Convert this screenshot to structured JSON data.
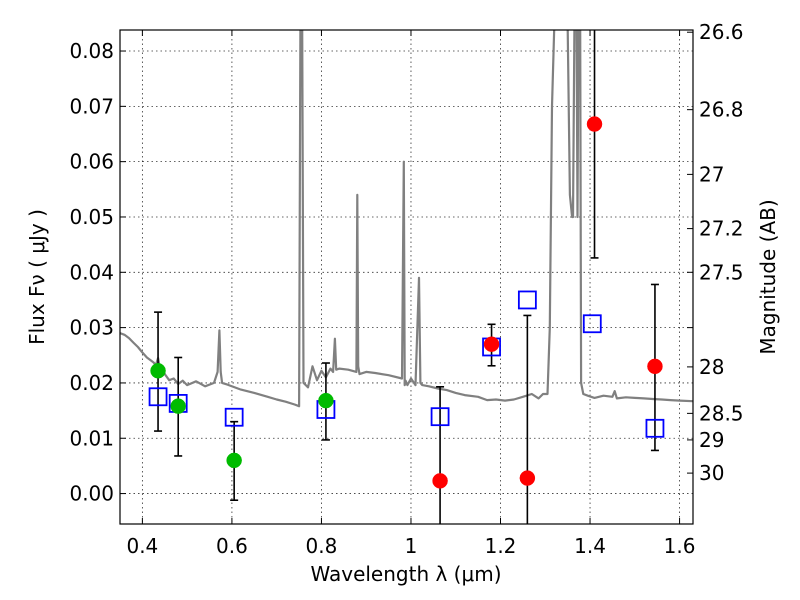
{
  "chart_data": {
    "type": "scatter",
    "xlabel": "Wavelength  λ (μm)",
    "ylabel": "Flux  Fν  ( μJy )",
    "ylabel_right": "Magnitude (AB)",
    "xlim": [
      0.35,
      1.63
    ],
    "ylim": [
      -0.0055,
      0.0838
    ],
    "x_ticks": [
      0.4,
      0.6,
      0.8,
      1.0,
      1.2,
      1.4,
      1.6
    ],
    "x_tick_labels": [
      "0.4",
      "0.6",
      "0.8",
      "1",
      "1.2",
      "1.4",
      "1.6"
    ],
    "y_ticks": [
      0.0,
      0.01,
      0.02,
      0.03,
      0.04,
      0.05,
      0.06,
      0.07,
      0.08
    ],
    "y_tick_labels": [
      "0.00",
      "0.01",
      "0.02",
      "0.03",
      "0.04",
      "0.05",
      "0.06",
      "0.07",
      "0.08"
    ],
    "right_ticks": [
      {
        "flux": 0.0834,
        "label": "26.6"
      },
      {
        "flux": 0.0694,
        "label": "26.8"
      },
      {
        "flux": 0.0577,
        "label": "27"
      },
      {
        "flux": 0.0479,
        "label": "27.2"
      },
      {
        "flux": 0.04,
        "label": "27.5"
      },
      {
        "flux": 0.03,
        "label": ""
      },
      {
        "flux": 0.0229,
        "label": "28"
      },
      {
        "flux": 0.0145,
        "label": "28.5"
      },
      {
        "flux": 0.0097,
        "label": "29"
      },
      {
        "flux": 0.0037,
        "label": "30"
      }
    ],
    "grid": true,
    "series": [
      {
        "name": "Model SED",
        "kind": "line",
        "color": "#808080",
        "x": [
          0.35,
          0.36,
          0.37,
          0.38,
          0.39,
          0.4,
          0.41,
          0.42,
          0.425,
          0.43,
          0.435,
          0.44,
          0.445,
          0.45,
          0.46,
          0.47,
          0.48,
          0.49,
          0.5,
          0.52,
          0.54,
          0.56,
          0.568,
          0.572,
          0.575,
          0.578,
          0.59,
          0.62,
          0.65,
          0.68,
          0.7,
          0.72,
          0.74,
          0.75,
          0.753,
          0.755,
          0.757,
          0.76,
          0.77,
          0.78,
          0.79,
          0.8,
          0.81,
          0.82,
          0.826,
          0.83,
          0.833,
          0.84,
          0.86,
          0.878,
          0.88,
          0.882,
          0.885,
          0.9,
          0.92,
          0.95,
          0.98,
          0.984,
          0.986,
          0.988,
          0.992,
          1.0,
          1.01,
          1.018,
          1.021,
          1.025,
          1.04,
          1.06,
          1.08,
          1.1,
          1.12,
          1.15,
          1.17,
          1.19,
          1.21,
          1.23,
          1.25,
          1.27,
          1.285,
          1.295,
          1.305,
          1.31,
          1.315,
          1.32,
          1.325,
          1.328,
          1.332,
          1.338,
          1.345,
          1.35,
          1.355,
          1.36,
          1.362,
          1.365,
          1.37,
          1.372,
          1.374,
          1.376,
          1.378,
          1.38,
          1.385,
          1.395,
          1.41,
          1.43,
          1.45,
          1.455,
          1.46,
          1.48,
          1.5,
          1.52,
          1.54,
          1.56,
          1.58,
          1.6,
          1.63
        ],
        "y": [
          0.029,
          0.0287,
          0.0281,
          0.0273,
          0.0265,
          0.0255,
          0.0246,
          0.024,
          0.0237,
          0.0232,
          0.0245,
          0.0222,
          0.0228,
          0.0216,
          0.0205,
          0.0208,
          0.0198,
          0.0204,
          0.0196,
          0.0203,
          0.0194,
          0.02,
          0.022,
          0.0295,
          0.022,
          0.02,
          0.0197,
          0.0188,
          0.0182,
          0.0175,
          0.017,
          0.0166,
          0.0161,
          0.0158,
          0.084,
          0.084,
          0.084,
          0.02,
          0.0192,
          0.023,
          0.0205,
          0.0222,
          0.021,
          0.0226,
          0.022,
          0.028,
          0.0224,
          0.0226,
          0.0224,
          0.022,
          0.054,
          0.023,
          0.0216,
          0.022,
          0.0218,
          0.0214,
          0.0208,
          0.06,
          0.0196,
          0.0204,
          0.0196,
          0.0208,
          0.0196,
          0.039,
          0.02,
          0.0196,
          0.0194,
          0.019,
          0.0187,
          0.0182,
          0.0178,
          0.0175,
          0.0169,
          0.017,
          0.0168,
          0.017,
          0.0175,
          0.018,
          0.0172,
          0.018,
          0.018,
          0.03,
          0.07,
          0.084,
          0.084,
          0.084,
          0.084,
          0.084,
          0.084,
          0.084,
          0.054,
          0.05,
          0.05,
          0.084,
          0.084,
          0.05,
          0.084,
          0.084,
          0.084,
          0.02,
          0.018,
          0.0177,
          0.0173,
          0.0177,
          0.0175,
          0.0185,
          0.0172,
          0.0174,
          0.0173,
          0.0172,
          0.0171,
          0.017,
          0.0169,
          0.0168,
          0.0167
        ]
      },
      {
        "name": "Observed (green)",
        "kind": "points",
        "marker": "circle",
        "color": "#00bb00",
        "x": [
          0.435,
          0.48,
          0.605,
          0.81
        ],
        "y": [
          0.0222,
          0.0158,
          0.006,
          0.0168
        ]
      },
      {
        "name": "Observed (red)",
        "kind": "points",
        "marker": "circle",
        "color": "#ff0000",
        "x": [
          1.065,
          1.18,
          1.26,
          1.41,
          1.545
        ],
        "y": [
          0.0023,
          0.027,
          0.0028,
          0.0668,
          0.023
        ]
      },
      {
        "name": "Model photometry",
        "kind": "points",
        "marker": "open-square",
        "color": "#0000ff",
        "x": [
          0.435,
          0.48,
          0.605,
          0.81,
          1.065,
          1.18,
          1.26,
          1.405,
          1.545
        ],
        "y": [
          0.0175,
          0.0163,
          0.0138,
          0.0152,
          0.0139,
          0.0265,
          0.035,
          0.0307,
          0.0118
        ]
      }
    ],
    "error_bars": [
      {
        "x": 0.435,
        "low": 0.0113,
        "high": 0.0328
      },
      {
        "x": 0.48,
        "low": 0.0068,
        "high": 0.0246
      },
      {
        "x": 0.605,
        "low": -0.0012,
        "high": 0.013
      },
      {
        "x": 0.81,
        "low": 0.0097,
        "high": 0.0236
      },
      {
        "x": 1.065,
        "low": -0.006,
        "high": 0.0193
      },
      {
        "x": 1.18,
        "low": 0.0231,
        "high": 0.0306
      },
      {
        "x": 1.26,
        "low": -0.006,
        "high": 0.0322
      },
      {
        "x": 1.41,
        "low": 0.0426,
        "high": 0.084
      },
      {
        "x": 1.545,
        "low": 0.0078,
        "high": 0.0378
      }
    ]
  }
}
